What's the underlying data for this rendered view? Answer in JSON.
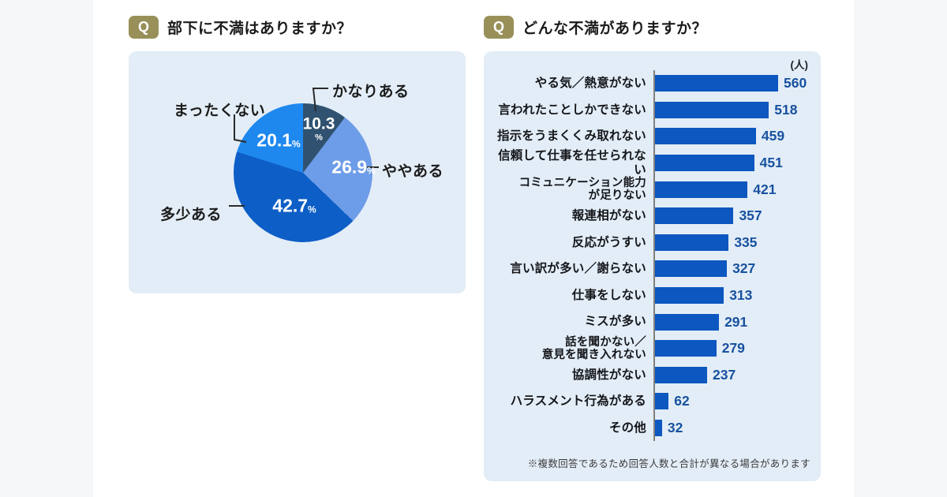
{
  "page": {
    "left": {
      "q_label": "Q",
      "title": "部下に不満はありますか？"
    },
    "right": {
      "q_label": "Q",
      "title": "どんな不満がありますか？",
      "unit": "(人)",
      "footnote": "※複数回答であるため回答人数と合計が異なる場合があります"
    }
  },
  "colors": {
    "panel_bg": "#e3edf7",
    "q_badge": "#999059",
    "bar": "#0d57c0",
    "bar_value_text": "#17519f",
    "pie_kanari": "#305270",
    "pie_yaya": "#6d9ce8",
    "pie_tasho": "#0d5ec6",
    "pie_mattaku": "#1e88ef"
  },
  "chart_data": [
    {
      "type": "pie",
      "title": "部下に不満はありますか？",
      "unit": "%",
      "start_angle_deg": 0,
      "direction": "clockwise",
      "slices": [
        {
          "label": "かなりある",
          "value": 10.3,
          "color": "#305270"
        },
        {
          "label": "ややある",
          "value": 26.9,
          "color": "#6d9ce8"
        },
        {
          "label": "多少ある",
          "value": 42.7,
          "color": "#0d5ec6"
        },
        {
          "label": "まったくない",
          "value": 20.1,
          "color": "#1e88ef"
        }
      ]
    },
    {
      "type": "bar",
      "orientation": "horizontal",
      "title": "どんな不満がありますか？",
      "unit": "人",
      "xlim": [
        0,
        600
      ],
      "legend": false,
      "categories": [
        "やる気／熱意がない",
        "言われたことしかできない",
        "指示をうまくくみ取れない",
        "信頼して仕事を任せられない",
        "コミュニケーション能力\nが足りない",
        "報連相がない",
        "反応がうすい",
        "言い訳が多い／謝らない",
        "仕事をしない",
        "ミスが多い",
        "話を聞かない／\n意見を聞き入れない",
        "協調性がない",
        "ハラスメント行為がある",
        "その他"
      ],
      "values": [
        560,
        518,
        459,
        451,
        421,
        357,
        335,
        327,
        313,
        291,
        279,
        237,
        62,
        32
      ]
    }
  ]
}
